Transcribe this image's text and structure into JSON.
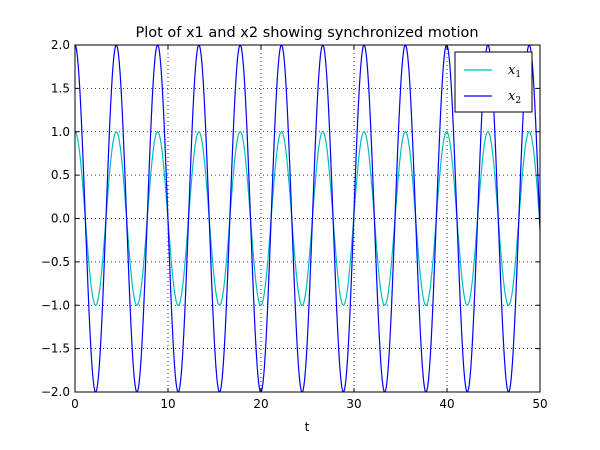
{
  "chart_data": {
    "type": "line",
    "title": "Plot of x1 and x2 showing synchronized motion",
    "xlabel": "t",
    "ylabel": "",
    "xlim": [
      0,
      50
    ],
    "ylim": [
      -2.0,
      2.0
    ],
    "x_ticks": [
      0,
      10,
      20,
      30,
      40,
      50
    ],
    "x_tick_labels": [
      "0",
      "10",
      "20",
      "30",
      "40",
      "50"
    ],
    "y_ticks": [
      2.0,
      1.5,
      1.0,
      0.5,
      0.0,
      -0.5,
      -1.0,
      -1.5,
      -2.0
    ],
    "y_tick_labels": [
      "2.0",
      "1.5",
      "1.0",
      "0.5",
      "0.0",
      "−0.5",
      "−1.0",
      "−1.5",
      "−2.0"
    ],
    "grid": true,
    "legend_position": "top-right",
    "series": [
      {
        "name": "x1",
        "legend_base": "x",
        "legend_sub": "1",
        "color": "#00bfbf",
        "amplitude": 1.0,
        "period": 4.44
      },
      {
        "name": "x2",
        "legend_base": "x",
        "legend_sub": "2",
        "color": "#0000ff",
        "amplitude": 2.0,
        "period": 4.44
      }
    ]
  }
}
